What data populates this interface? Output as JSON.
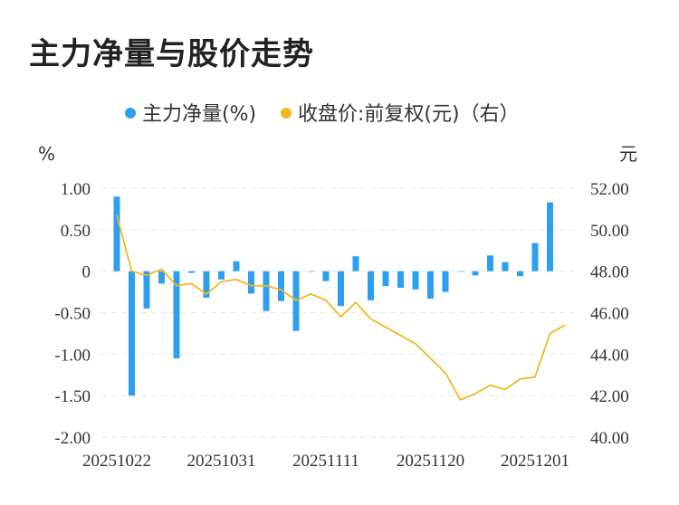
{
  "chart_data": {
    "type": "bar+line",
    "title": "主力净量与股价走势",
    "legend": {
      "placement": "top-center",
      "items": [
        {
          "label": "主力净量(%)",
          "color": "#2e9ff0",
          "marker": "dot"
        },
        {
          "label": "收盘价:前复权(元)（右）",
          "color": "#f2b81e",
          "marker": "dot"
        }
      ]
    },
    "y_left": {
      "unit": "%",
      "min": -2.0,
      "max": 1.0,
      "ticks": [
        "1.00",
        "0.50",
        "0",
        "-0.50",
        "-1.00",
        "-1.50",
        "-2.00"
      ]
    },
    "y_right": {
      "unit": "元",
      "min": 40.0,
      "max": 52.0,
      "ticks": [
        "52.00",
        "50.00",
        "48.00",
        "46.00",
        "44.00",
        "42.00",
        "40.00"
      ]
    },
    "x_tick_labels": [
      {
        "index": 0,
        "label": "20251022"
      },
      {
        "index": 7,
        "label": "20251031"
      },
      {
        "index": 14,
        "label": "20251111"
      },
      {
        "index": 21,
        "label": "20251120"
      },
      {
        "index": 28,
        "label": "20251201"
      }
    ],
    "series": [
      {
        "name": "主力净量(%)",
        "kind": "bar",
        "axis": "left",
        "color": "#2e9ff0",
        "values": [
          0.9,
          -1.5,
          -0.45,
          -0.15,
          -1.05,
          -0.02,
          -0.32,
          -0.1,
          0.12,
          -0.27,
          -0.48,
          -0.36,
          -0.72,
          0.0,
          -0.12,
          -0.42,
          0.18,
          -0.35,
          -0.18,
          -0.2,
          -0.22,
          -0.33,
          -0.25,
          0.0,
          -0.05,
          0.19,
          0.11,
          -0.06,
          0.34,
          0.83
        ]
      },
      {
        "name": "收盘价:前复权(元)（右）",
        "kind": "line",
        "axis": "right",
        "color": "#f2b81e",
        "values": [
          50.7,
          48.0,
          47.8,
          48.1,
          47.3,
          47.4,
          46.9,
          47.5,
          47.6,
          47.3,
          47.3,
          47.1,
          46.6,
          46.9,
          46.6,
          45.8,
          46.5,
          45.7,
          45.3,
          44.9,
          44.5,
          43.8,
          43.1,
          41.8,
          42.1,
          42.5,
          42.3,
          42.8,
          42.9,
          45.0,
          45.4
        ]
      }
    ],
    "grid": "horizontal-dashed"
  }
}
